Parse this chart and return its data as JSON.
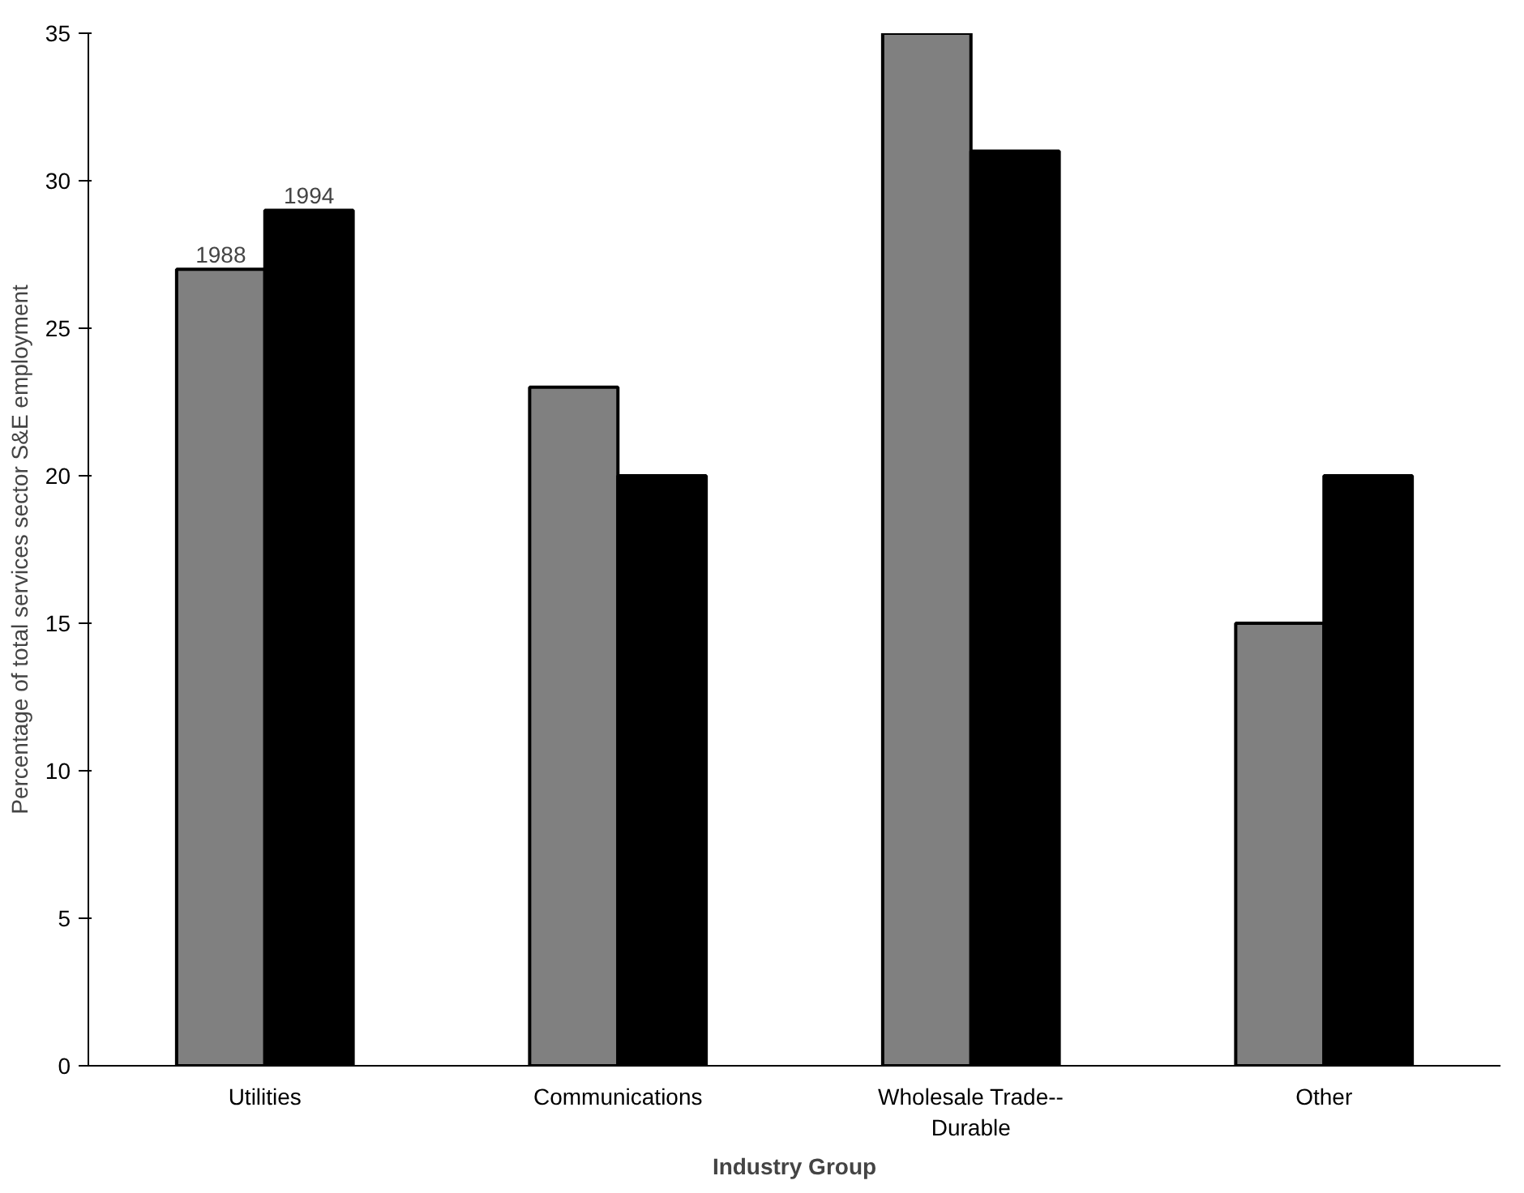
{
  "chart_data": {
    "type": "bar",
    "xlabel": "Industry Group",
    "ylabel": "Percentage of total services sector S&E employment",
    "categories": [
      "Utilities",
      "Communications",
      "Wholesale Trade--\nDurable",
      "Other"
    ],
    "series": [
      {
        "name": "1988",
        "color": "#808080",
        "values": [
          27,
          23,
          35,
          15
        ]
      },
      {
        "name": "1994",
        "color": "#000000",
        "values": [
          29,
          20,
          31,
          20
        ]
      }
    ],
    "ylim": [
      0,
      35
    ],
    "yticks": [
      0,
      5,
      10,
      15,
      20,
      25,
      30,
      35
    ],
    "grid": false,
    "legend": false
  }
}
